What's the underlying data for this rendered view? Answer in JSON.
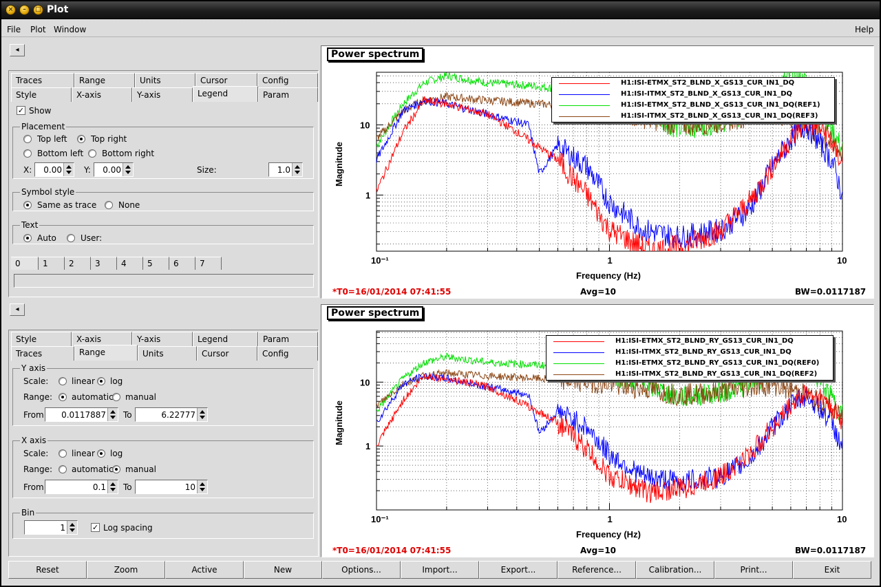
{
  "window": {
    "title": "Plot"
  },
  "menu": {
    "file": "File",
    "plot": "Plot",
    "window": "Window",
    "help": "Help"
  },
  "colors": {
    "trace_red": "#ff0000",
    "trace_blue": "#0000ff",
    "trace_green": "#00e000",
    "trace_brown": "#8b4513",
    "t0": "#e00000"
  },
  "top_panel": {
    "tabs_row1": [
      "Traces",
      "Range",
      "Units",
      "Cursor",
      "Config"
    ],
    "tabs_row2": [
      "Style",
      "X-axis",
      "Y-axis",
      "Legend",
      "Param"
    ],
    "active_tab": "Legend",
    "show_label": "Show",
    "show_checked": true,
    "placement": {
      "title": "Placement",
      "top_left": "Top left",
      "top_right": "Top right",
      "bottom_left": "Bottom left",
      "bottom_right": "Bottom right",
      "selected": "Top right",
      "x_label": "X:",
      "x_value": "0.00",
      "y_label": "Y:",
      "y_value": "0.00",
      "size_label": "Size:",
      "size_value": "1.0"
    },
    "symbol_style": {
      "title": "Symbol style",
      "same": "Same as trace",
      "none": "None",
      "selected": "Same as trace"
    },
    "text": {
      "title": "Text",
      "auto": "Auto",
      "user": "User:",
      "selected": "Auto"
    },
    "trace_tabs": [
      "0",
      "1",
      "2",
      "3",
      "4",
      "5",
      "6",
      "7"
    ]
  },
  "bottom_panel": {
    "tabs_row1": [
      "Style",
      "X-axis",
      "Y-axis",
      "Legend",
      "Param"
    ],
    "tabs_row2": [
      "Traces",
      "Range",
      "Units",
      "Cursor",
      "Config"
    ],
    "active_tab": "Range",
    "y_axis": {
      "title": "Y axis",
      "scale_label": "Scale:",
      "linear": "linear",
      "log": "log",
      "scale_selected": "log",
      "range_label": "Range:",
      "automatic": "automatic",
      "manual": "manual",
      "range_selected": "automatic",
      "from_label": "From",
      "from": "0.0117887",
      "to_label": "To",
      "to": "6.22777"
    },
    "x_axis": {
      "title": "X axis",
      "scale_label": "Scale:",
      "linear": "linear",
      "log": "log",
      "scale_selected": "log",
      "range_label": "Range:",
      "automatic": "automatic",
      "manual": "manual",
      "range_selected": "manual",
      "from_label": "From",
      "from": "0.1",
      "to_label": "To",
      "to": "10"
    },
    "bin": {
      "title": "Bin",
      "value": "1",
      "log_spacing": "Log spacing",
      "log_checked": true
    }
  },
  "plots": [
    {
      "title": "Power spectrum",
      "ylabel": "Magnitude",
      "xlabel": "Frequency (Hz)",
      "x_ticks": [
        "10⁻¹",
        "1",
        "10"
      ],
      "y_ticks": [
        "10",
        "1"
      ],
      "t0": "*T0=16/01/2014 07:41:55",
      "avg": "Avg=10",
      "bw": "BW=0.0117187",
      "legend": [
        {
          "name": "H1:ISI-ETMX_ST2_BLND_X_GS13_CUR_IN1_DQ",
          "color": "#ff0000"
        },
        {
          "name": "H1:ISI-ITMX_ST2_BLND_X_GS13_CUR_IN1_DQ",
          "color": "#0000ff"
        },
        {
          "name": "H1:ISI-ETMX_ST2_BLND_X_GS13_CUR_IN1_DQ(REF1)",
          "color": "#00e000"
        },
        {
          "name": "H1:ISI-ITMX_ST2_BLND_X_GS13_CUR_IN1_DQ(REF3)",
          "color": "#8b4513"
        }
      ]
    },
    {
      "title": "Power spectrum",
      "ylabel": "Magnitude",
      "xlabel": "Frequency (Hz)",
      "x_ticks": [
        "10⁻¹",
        "1",
        "10"
      ],
      "y_ticks": [
        "10",
        "1"
      ],
      "t0": "*T0=16/01/2014 07:41:55",
      "avg": "Avg=10",
      "bw": "BW=0.0117187",
      "legend": [
        {
          "name": "H1:ISI-ETMX_ST2_BLND_RY_GS13_CUR_IN1_DQ",
          "color": "#ff0000"
        },
        {
          "name": "H1:ISI-ITMX_ST2_BLND_RY_GS13_CUR_IN1_DQ",
          "color": "#0000ff"
        },
        {
          "name": "H1:ISI-ETMX_ST2_BLND_RY_GS13_CUR_IN1_DQ(REF0)",
          "color": "#00e000"
        },
        {
          "name": "H1:ISI-ITMX_ST2_BLND_RY_GS13_CUR_IN1_DQ(REF2)",
          "color": "#8b4513"
        }
      ]
    }
  ],
  "buttons": [
    "Reset",
    "Zoom",
    "Active",
    "New",
    "Options...",
    "Import...",
    "Export...",
    "Reference...",
    "Calibration...",
    "Print...",
    "Exit"
  ]
}
